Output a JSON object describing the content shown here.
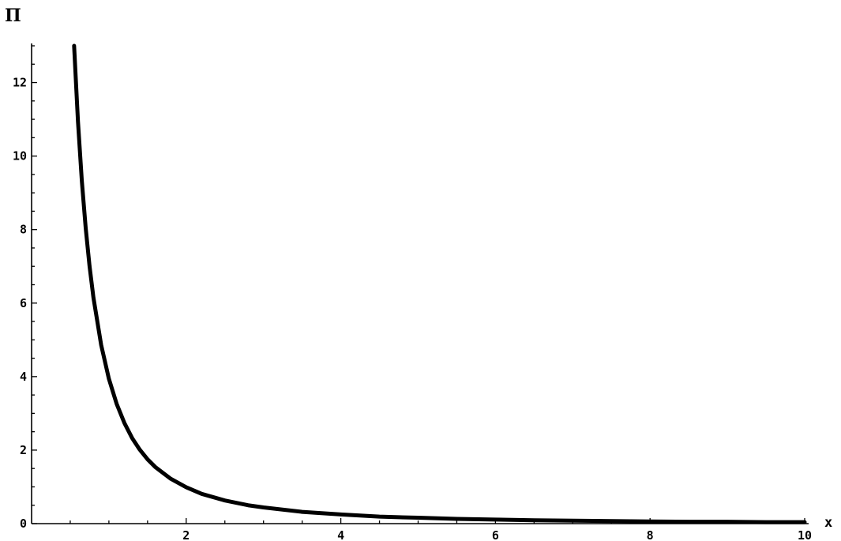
{
  "chart_data": {
    "type": "line",
    "title": "",
    "xlabel": "x",
    "ylabel": "Π",
    "xlim": [
      0,
      10
    ],
    "ylim": [
      0,
      13
    ],
    "x_ticks": [
      2,
      4,
      6,
      8,
      10
    ],
    "y_ticks": [
      0,
      2,
      4,
      6,
      8,
      10,
      12
    ],
    "grid": false,
    "series": [
      {
        "color": "#000000",
        "x": [
          0.55,
          0.6,
          0.65,
          0.7,
          0.75,
          0.8,
          0.9,
          1.0,
          1.1,
          1.2,
          1.3,
          1.4,
          1.5,
          1.6,
          1.8,
          2.0,
          2.2,
          2.5,
          2.8,
          3.0,
          3.5,
          4.0,
          4.5,
          5.0,
          5.5,
          6.0,
          6.5,
          7.0,
          7.5,
          8.0,
          8.5,
          9.0,
          9.5,
          10.0
        ],
        "y": [
          13.0,
          10.94,
          9.32,
          8.04,
          7.0,
          6.15,
          4.86,
          3.94,
          3.26,
          2.74,
          2.33,
          2.01,
          1.75,
          1.54,
          1.22,
          0.99,
          0.81,
          0.63,
          0.5,
          0.44,
          0.32,
          0.25,
          0.19,
          0.16,
          0.13,
          0.11,
          0.09,
          0.08,
          0.07,
          0.06,
          0.05,
          0.05,
          0.04,
          0.04
        ]
      }
    ]
  }
}
